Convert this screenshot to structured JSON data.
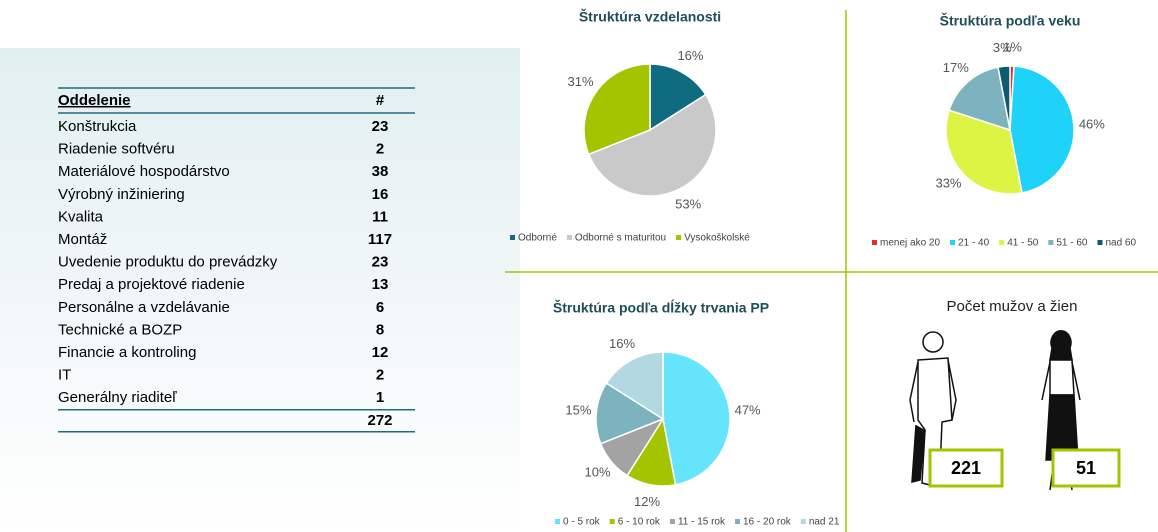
{
  "table": {
    "header": [
      "Oddelenie",
      "#"
    ],
    "rows": [
      [
        "Konštrukcia",
        "23"
      ],
      [
        "Riadenie softvéru",
        "2"
      ],
      [
        "Materiálové hospodárstvo",
        "38"
      ],
      [
        "Výrobný inžiniering",
        "16"
      ],
      [
        "Kvalita",
        "11"
      ],
      [
        "Montáž",
        "117"
      ],
      [
        "Uvedenie produktu do prevádzky",
        "23"
      ],
      [
        "Predaj a projektové riadenie",
        "13"
      ],
      [
        "Personálne a vzdelávanie",
        "6"
      ],
      [
        "Technické a BOZP",
        "8"
      ],
      [
        "Financie a kontroling",
        "12"
      ],
      [
        "IT",
        "2"
      ],
      [
        "Generálny riaditeľ",
        "1"
      ]
    ],
    "total": "272"
  },
  "chart_data": [
    {
      "type": "pie",
      "title": "Štruktúra vzdelanosti",
      "categories": [
        "Odborné",
        "Odborné s maturitou",
        "Vysokoškolské"
      ],
      "values": [
        16,
        53,
        31
      ],
      "value_labels": [
        "16%",
        "53%",
        "31%"
      ],
      "colors": [
        "#0f6b7f",
        "#c9c9c9",
        "#a5c400"
      ]
    },
    {
      "type": "pie",
      "title": "Štruktúra podľa veku",
      "categories": [
        "menej ako 20",
        "21 - 40",
        "41 - 50",
        "51 - 60",
        "nad 60"
      ],
      "values": [
        1,
        46,
        33,
        17,
        3
      ],
      "value_labels": [
        "1%",
        "46%",
        "33%",
        "17%",
        "3%"
      ],
      "colors": [
        "#e0302a",
        "#1fd2f7",
        "#dcf544",
        "#7db3be",
        "#0e5a70"
      ]
    },
    {
      "type": "pie",
      "title": "Štruktúra podľa dĺžky trvania PP",
      "categories": [
        "0 - 5 rok",
        "6 - 10 rok",
        "11 - 15 rok",
        "16 - 20 rok",
        "nad 21"
      ],
      "values": [
        47,
        12,
        10,
        15,
        16
      ],
      "value_labels": [
        "47%",
        "12%",
        "10%",
        "15%",
        "16%"
      ],
      "colors": [
        "#66e4fb",
        "#a5c400",
        "#a3a3a3",
        "#7db3be",
        "#b2d9e1"
      ]
    }
  ],
  "gender": {
    "title": "Počet mužov a žien",
    "men": "221",
    "women": "51"
  }
}
